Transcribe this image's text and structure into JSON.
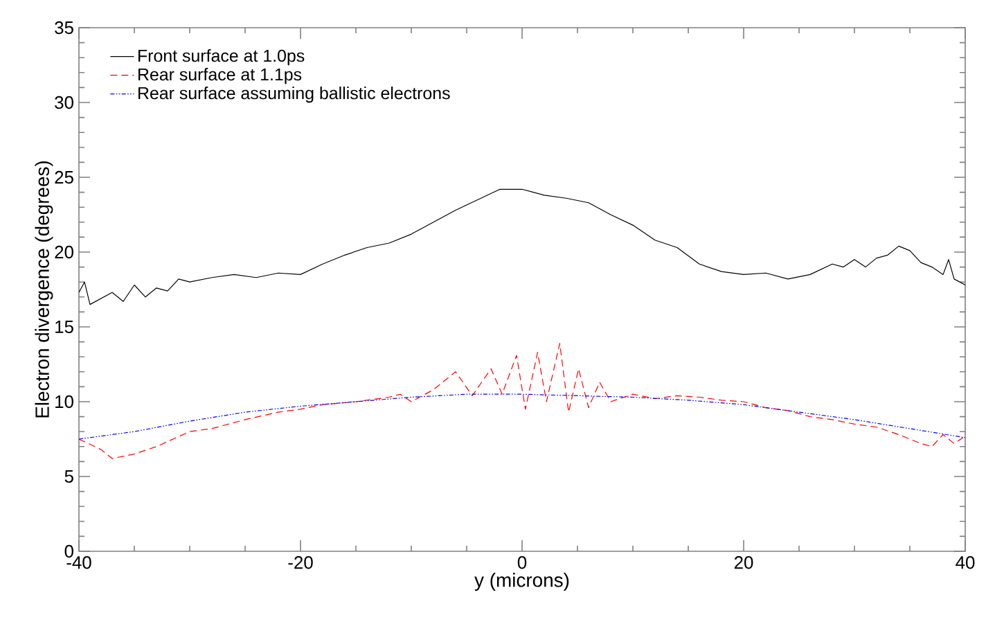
{
  "chart_data": {
    "type": "line",
    "xlabel": "y (microns)",
    "ylabel": "Electron divergence (degrees)",
    "xlim": [
      -40,
      40
    ],
    "ylim": [
      0,
      35
    ],
    "xticks": [
      -40,
      -20,
      0,
      20,
      40
    ],
    "yticks": [
      0,
      5,
      10,
      15,
      20,
      25,
      30,
      35
    ],
    "legend": "top left",
    "grid": false,
    "marker": "none",
    "series": [
      {
        "name": "Front surface at 1.0ps",
        "color": "#000000",
        "line_style": "solid",
        "x": [
          -40,
          -39.5,
          -39,
          -38,
          -37,
          -36,
          -35,
          -34,
          -33,
          -32,
          -31,
          -30,
          -28,
          -26,
          -24,
          -22,
          -20,
          -18,
          -16,
          -14,
          -12,
          -10,
          -8,
          -6,
          -4,
          -2,
          0,
          2,
          4,
          6,
          8,
          10,
          12,
          14,
          16,
          18,
          20,
          22,
          24,
          26,
          28,
          29,
          30,
          31,
          32,
          33,
          34,
          35,
          36,
          37,
          38,
          38.5,
          39,
          40
        ],
        "values": [
          17.3,
          18.0,
          16.5,
          16.9,
          17.3,
          16.7,
          17.8,
          17.0,
          17.6,
          17.4,
          18.2,
          18.0,
          18.3,
          18.5,
          18.3,
          18.6,
          18.5,
          19.2,
          19.8,
          20.3,
          20.6,
          21.2,
          22.0,
          22.8,
          23.5,
          24.2,
          24.2,
          23.8,
          23.6,
          23.3,
          22.5,
          21.8,
          20.8,
          20.3,
          19.2,
          18.7,
          18.5,
          18.6,
          18.2,
          18.5,
          19.2,
          19.0,
          19.5,
          19.0,
          19.6,
          19.8,
          20.4,
          20.1,
          19.3,
          19.0,
          18.5,
          19.5,
          18.2,
          17.8
        ]
      },
      {
        "name": "Rear surface at 1.1ps",
        "color": "#ff0000",
        "line_style": "dashed",
        "x": [
          -40,
          -38,
          -37,
          -35,
          -33,
          -30,
          -28,
          -25,
          -22,
          -20,
          -18,
          -15,
          -12,
          -11,
          -10,
          -8,
          -6,
          -4.5,
          -2.8,
          -1.8,
          -0.5,
          0.3,
          1.4,
          2.2,
          3.4,
          4.2,
          5.1,
          6,
          7,
          8,
          10,
          12,
          14,
          16,
          18,
          20,
          22,
          24,
          26,
          28,
          30,
          32,
          34,
          35,
          36,
          37,
          38,
          39,
          40
        ],
        "values": [
          7.5,
          6.8,
          6.2,
          6.5,
          7.0,
          8.0,
          8.2,
          8.8,
          9.3,
          9.5,
          9.8,
          10.0,
          10.3,
          10.5,
          10.0,
          10.8,
          12.0,
          10.4,
          12.2,
          10.5,
          13.1,
          9.5,
          13.3,
          10.0,
          13.9,
          9.3,
          12.2,
          9.6,
          11.3,
          10.0,
          10.5,
          10.2,
          10.4,
          10.3,
          10.1,
          10.0,
          9.6,
          9.4,
          9.0,
          8.8,
          8.5,
          8.3,
          7.8,
          7.5,
          7.2,
          7.0,
          7.8,
          7.2,
          7.7
        ]
      },
      {
        "name": "Rear surface assuming ballistic electrons",
        "color": "#0000ff",
        "line_style": "dotted",
        "x": [
          -40,
          -35,
          -30,
          -25,
          -20,
          -15,
          -10,
          -5,
          0,
          5,
          10,
          15,
          20,
          25,
          30,
          35,
          40
        ],
        "values": [
          7.5,
          8.0,
          8.7,
          9.3,
          9.7,
          10.0,
          10.3,
          10.5,
          10.5,
          10.4,
          10.3,
          10.1,
          9.8,
          9.3,
          8.8,
          8.2,
          7.6
        ]
      }
    ]
  }
}
